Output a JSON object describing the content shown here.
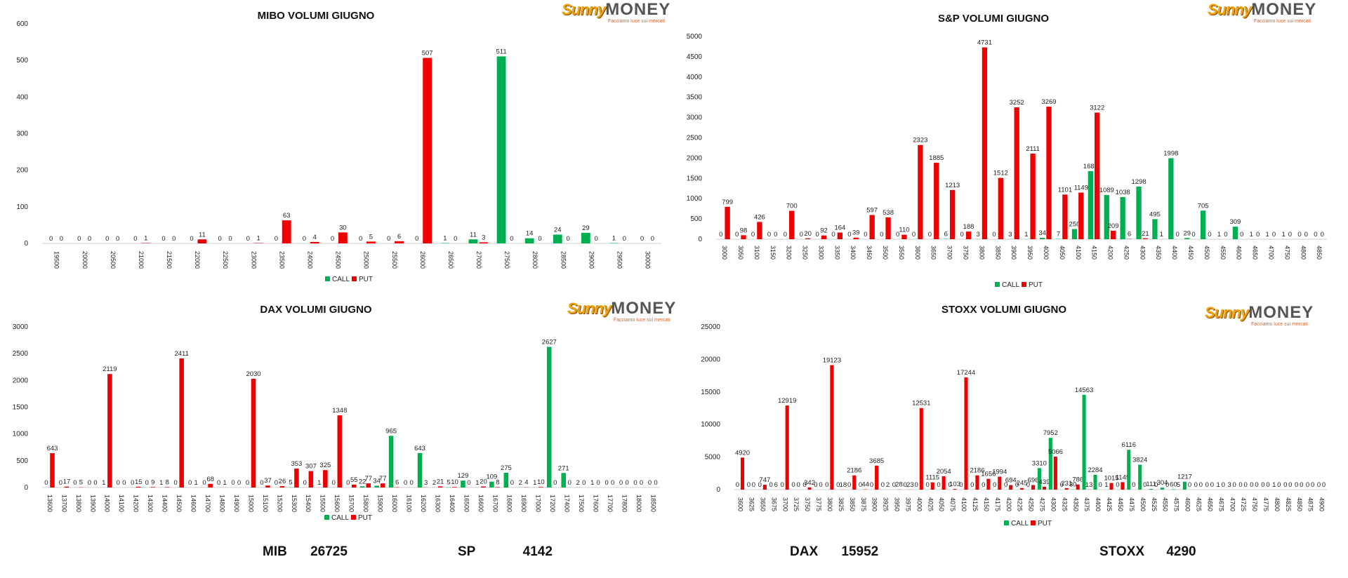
{
  "brand": {
    "logo_word1": "Sunny",
    "logo_word2": "MONEY",
    "tagline": "Facciamo luce sui mercati"
  },
  "colors": {
    "call": "#00b050",
    "put": "#ee0000"
  },
  "spot": [
    {
      "label": "MIB",
      "value": "26725"
    },
    {
      "label": "SP",
      "value": "4142"
    },
    {
      "label": "DAX",
      "value": "15952"
    },
    {
      "label": "STOXX",
      "value": "4290"
    }
  ],
  "chart_data": [
    {
      "type": "bar",
      "title": "MIBO VOLUMI GIUGNO",
      "legend": [
        "CALL",
        "PUT"
      ],
      "legend_position": "bottom",
      "ylim": [
        0,
        600
      ],
      "yticks": [
        0,
        100,
        200,
        300,
        400,
        500,
        600
      ],
      "categories": [
        "19500",
        "20000",
        "20500",
        "21000",
        "21500",
        "22000",
        "22500",
        "23000",
        "23500",
        "24000",
        "24500",
        "25000",
        "25500",
        "26000",
        "26500",
        "27000",
        "27500",
        "28000",
        "28500",
        "29000",
        "29500",
        "30000"
      ],
      "series": [
        {
          "name": "CALL",
          "values": [
            0,
            0,
            0,
            0,
            0,
            0,
            0,
            0,
            0,
            0,
            0,
            0,
            0,
            0,
            1,
            11,
            511,
            14,
            24,
            29,
            1,
            0
          ]
        },
        {
          "name": "PUT",
          "values": [
            0,
            0,
            0,
            1,
            0,
            11,
            0,
            1,
            63,
            4,
            30,
            5,
            6,
            507,
            0,
            3,
            0,
            0,
            0,
            0,
            0,
            0
          ]
        }
      ]
    },
    {
      "type": "bar",
      "title": "S&P VOLUMI GIUGNO",
      "legend": [
        "CALL",
        "PUT"
      ],
      "legend_position": "bottom",
      "ylim": [
        0,
        5000
      ],
      "yticks": [
        0,
        500,
        1000,
        1500,
        2000,
        2500,
        3000,
        3500,
        4000,
        4500,
        5000
      ],
      "categories": [
        "3000",
        "3050",
        "3100",
        "3150",
        "3200",
        "3250",
        "3300",
        "3350",
        "3400",
        "3450",
        "3500",
        "3550",
        "3600",
        "3650",
        "3700",
        "3750",
        "3800",
        "3850",
        "3900",
        "3950",
        "4000",
        "4050",
        "4100",
        "4150",
        "4200",
        "4250",
        "4300",
        "4350",
        "4400",
        "4450",
        "4500",
        "4550",
        "4600",
        "4650",
        "4700",
        "4750",
        "4800",
        "4850"
      ],
      "series": [
        {
          "name": "CALL",
          "values": [
            0,
            0,
            0,
            0,
            0,
            0,
            0,
            0,
            0,
            0,
            0,
            0,
            0,
            0,
            6,
            0,
            3,
            0,
            3,
            1,
            34,
            7,
            250,
            1680,
            1089,
            1038,
            1298,
            495,
            1998,
            29,
            705,
            1,
            309,
            1,
            1,
            1,
            0,
            0
          ]
        },
        {
          "name": "PUT",
          "values": [
            799,
            98,
            426,
            0,
            700,
            20,
            92,
            164,
            39,
            597,
            538,
            110,
            2323,
            1885,
            1213,
            188,
            4731,
            1512,
            3252,
            2111,
            3269,
            1101,
            1149,
            3122,
            209,
            6,
            21,
            1,
            0,
            0,
            0,
            0,
            0,
            0,
            0,
            0,
            0,
            0
          ]
        }
      ]
    },
    {
      "type": "bar",
      "title": "DAX VOLUMI GIUGNO",
      "legend": [
        "CALL",
        "PUT"
      ],
      "legend_position": "bottom",
      "ylim": [
        0,
        3000
      ],
      "yticks": [
        0,
        500,
        1000,
        1500,
        2000,
        2500,
        3000
      ],
      "categories": [
        "13600",
        "13700",
        "13800",
        "13900",
        "14000",
        "14100",
        "14200",
        "14300",
        "14400",
        "14500",
        "14600",
        "14700",
        "14800",
        "14900",
        "15000",
        "15100",
        "15200",
        "15300",
        "15400",
        "15500",
        "15600",
        "15700",
        "15800",
        "15900",
        "16000",
        "16100",
        "16200",
        "16300",
        "16400",
        "16500",
        "16600",
        "16700",
        "16800",
        "16900",
        "17000",
        "17200",
        "17400",
        "17500",
        "17600",
        "17700",
        "17800",
        "18000",
        "18500"
      ],
      "series": [
        {
          "name": "CALL",
          "values": [
            0,
            0,
            0,
            0,
            1,
            0,
            0,
            0,
            1,
            0,
            0,
            0,
            0,
            0,
            0,
            0,
            0,
            5,
            0,
            1,
            0,
            0,
            22,
            34,
            965,
            0,
            643,
            2,
            5,
            129,
            1,
            109,
            275,
            2,
            1,
            2627,
            271,
            2,
            1,
            0,
            0,
            0,
            0
          ]
        },
        {
          "name": "PUT",
          "values": [
            643,
            17,
            5,
            0,
            2119,
            0,
            15,
            9,
            8,
            2411,
            1,
            68,
            1,
            0,
            2030,
            37,
            26,
            353,
            307,
            325,
            1348,
            55,
            77,
            77,
            6,
            0,
            3,
            21,
            10,
            0,
            20,
            8,
            0,
            4,
            10,
            0,
            0,
            0,
            0,
            0,
            0,
            0,
            0
          ]
        }
      ]
    },
    {
      "type": "bar",
      "title": "STOXX VOLUMI GIUGNO",
      "legend": [
        "CALL",
        "PUT"
      ],
      "legend_position": "bottom",
      "ylim": [
        0,
        25000
      ],
      "yticks": [
        0,
        5000,
        10000,
        15000,
        20000,
        25000
      ],
      "categories": [
        "3600",
        "3625",
        "3650",
        "3675",
        "3700",
        "3725",
        "3750",
        "3775",
        "3800",
        "3825",
        "3850",
        "3875",
        "3900",
        "3925",
        "3950",
        "3975",
        "4000",
        "4025",
        "4050",
        "4075",
        "4100",
        "4125",
        "4150",
        "4175",
        "4200",
        "4225",
        "4250",
        "4275",
        "4300",
        "4325",
        "4350",
        "4375",
        "4400",
        "4425",
        "4450",
        "4475",
        "4500",
        "4525",
        "4550",
        "4575",
        "4600",
        "4625",
        "4650",
        "4675",
        "4700",
        "4725",
        "4750",
        "4775",
        "4800",
        "4825",
        "4850",
        "4875",
        "4900"
      ],
      "series": [
        {
          "name": "CALL",
          "values": [
            0,
            0,
            0,
            0,
            0,
            0,
            0,
            0,
            0,
            0,
            0,
            0,
            0,
            0,
            0,
            0,
            0,
            0,
            0,
            0,
            0,
            0,
            0,
            0,
            0,
            0,
            0,
            3310,
            7952,
            0,
            30,
            14563,
            2284,
            1,
            0,
            6116,
            3824,
            111,
            304,
            60,
            1217,
            0,
            0,
            1,
            3,
            0,
            0,
            0,
            1,
            0,
            0,
            0,
            0
          ]
        },
        {
          "name": "PUT",
          "values": [
            4920,
            0,
            747,
            6,
            12919,
            0,
            342,
            0,
            19123,
            18,
            2186,
            44,
            3685,
            2,
            28,
            23,
            12531,
            1115,
            2054,
            103,
            17244,
            2186,
            1656,
            1994,
            694,
            245,
            696,
            439,
            5066,
            231,
            786,
            13,
            0,
            1015,
            1145,
            0,
            0,
            0,
            0,
            5,
            0,
            0,
            0,
            0,
            0,
            0,
            0,
            0,
            0,
            0,
            0,
            0,
            0
          ]
        }
      ]
    }
  ]
}
